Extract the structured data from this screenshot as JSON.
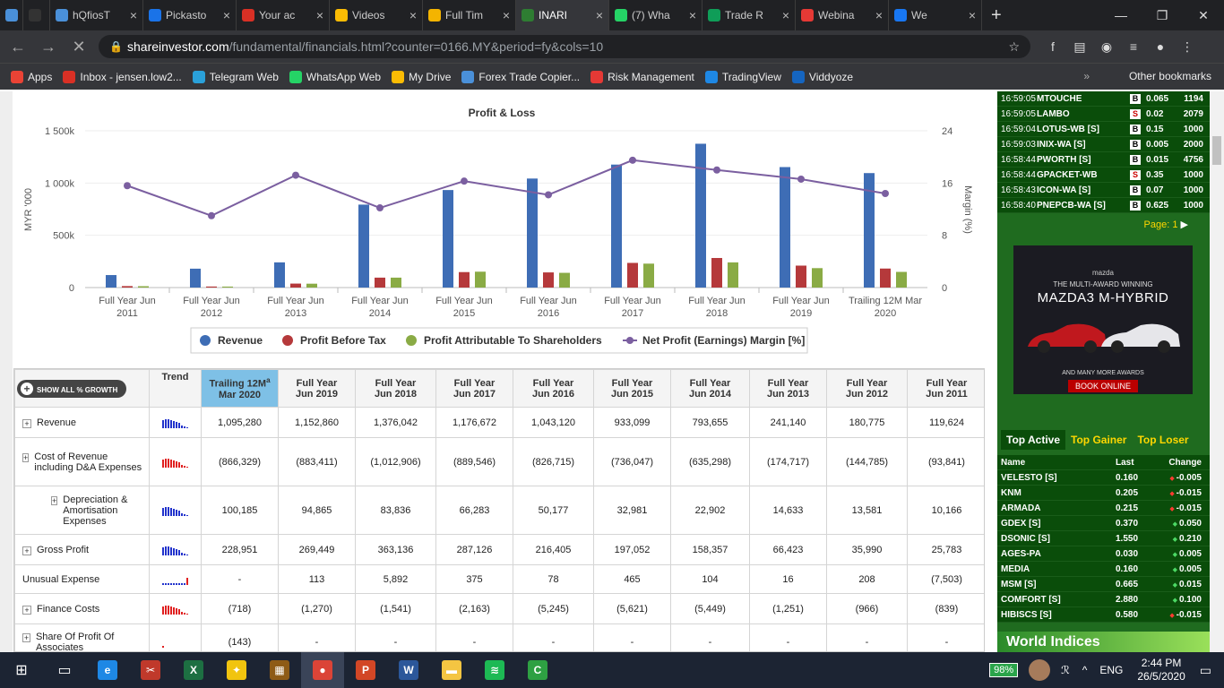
{
  "browser": {
    "tabs": [
      {
        "label": "",
        "icon": "blue-cloud-icon",
        "color": "#4a90d9"
      },
      {
        "label": "",
        "icon": "inv-icon",
        "color": "#333333"
      },
      {
        "label": "hQfiosT",
        "icon": "cloud-icon",
        "color": "#4a90d9"
      },
      {
        "label": "Pickasto",
        "icon": "at-icon",
        "color": "#1a73e8"
      },
      {
        "label": "Your ac",
        "icon": "gmail-icon",
        "color": "#d93025"
      },
      {
        "label": "Videos",
        "icon": "drive-icon",
        "color": "#fbbc04"
      },
      {
        "label": "Full Tim",
        "icon": "doc-icon",
        "color": "#f4b400"
      },
      {
        "label": "INARI",
        "icon": "chart-icon",
        "color": "#2e7d32"
      },
      {
        "label": "(7) Wha",
        "icon": "whatsapp-icon",
        "color": "#25d366"
      },
      {
        "label": "Trade R",
        "icon": "sheets-icon",
        "color": "#0f9d58"
      },
      {
        "label": "Webina",
        "icon": "webinar-icon",
        "color": "#e53935"
      },
      {
        "label": "We",
        "icon": "facebook-icon",
        "color": "#1877f2"
      }
    ],
    "active_tab": 7,
    "url_domain": "shareinvestor.com",
    "url_rest": "/fundamental/financials.html?counter=0166.MY&period=fy&cols=10",
    "bookmarks": [
      "Apps",
      "Inbox - jensen.low2...",
      "Telegram Web",
      "WhatsApp Web",
      "My Drive",
      "Forex Trade Copier...",
      "Risk Management",
      "TradingView",
      "Viddyoze"
    ],
    "bookmark_colors": [
      "#ea4335",
      "#d93025",
      "#2aa1da",
      "#25d366",
      "#fbbc04",
      "#4a90d9",
      "#e53935",
      "#1e88e5",
      "#1565c0"
    ],
    "other_bookmarks": "Other bookmarks",
    "overflow": "»"
  },
  "chart_data": {
    "type": "bar",
    "title": "Profit & Loss",
    "ylabel": "MYR '000",
    "y2label": "Margin (%)",
    "ylim": [
      0,
      1500000
    ],
    "y2lim": [
      0,
      24
    ],
    "yticks": [
      "1 500k",
      "1 000k",
      "500k",
      "0"
    ],
    "y2ticks": [
      "24",
      "16",
      "8",
      "0"
    ],
    "categories": [
      [
        "Full Year Jun",
        "2011"
      ],
      [
        "Full Year Jun",
        "2012"
      ],
      [
        "Full Year Jun",
        "2013"
      ],
      [
        "Full Year Jun",
        "2014"
      ],
      [
        "Full Year Jun",
        "2015"
      ],
      [
        "Full Year Jun",
        "2016"
      ],
      [
        "Full Year Jun",
        "2017"
      ],
      [
        "Full Year Jun",
        "2018"
      ],
      [
        "Full Year Jun",
        "2019"
      ],
      [
        "Trailing 12M Mar",
        "2020"
      ]
    ],
    "series": [
      {
        "name": "Revenue",
        "color": "#3e6db5",
        "values": [
          119624,
          180775,
          241140,
          793655,
          933099,
          1043120,
          1176672,
          1376042,
          1152860,
          1095280
        ]
      },
      {
        "name": "Profit Before Tax",
        "color": "#b5393b",
        "values": [
          14000,
          10000,
          38000,
          95000,
          148000,
          145000,
          236000,
          283000,
          210000,
          182000
        ]
      },
      {
        "name": "Profit Attributable To Shareholders",
        "color": "#8aab45",
        "values": [
          13000,
          9500,
          37000,
          95000,
          152000,
          141000,
          229000,
          241000,
          186000,
          150000
        ]
      }
    ],
    "line": {
      "name": "Net Profit (Earnings) Margin [%]",
      "color": "#7b5fa0",
      "values": [
        15.6,
        11.0,
        17.2,
        12.2,
        16.3,
        14.2,
        19.5,
        18.0,
        16.6,
        14.4
      ]
    }
  },
  "table": {
    "show_all": "SHOW ALL % GROWTH",
    "trend_header": "Trend",
    "columns": [
      [
        "Trailing 12M",
        "Mar 2020"
      ],
      [
        "Full Year",
        "Jun 2019"
      ],
      [
        "Full Year",
        "Jun 2018"
      ],
      [
        "Full Year",
        "Jun 2017"
      ],
      [
        "Full Year",
        "Jun 2016"
      ],
      [
        "Full Year",
        "Jun 2015"
      ],
      [
        "Full Year",
        "Jun 2014"
      ],
      [
        "Full Year",
        "Jun 2013"
      ],
      [
        "Full Year",
        "Jun 2012"
      ],
      [
        "Full Year",
        "Jun 2011"
      ]
    ],
    "superscript": "a",
    "rows": [
      {
        "label": "Revenue",
        "plus": true,
        "indent": 0,
        "h": 34,
        "trend": "blue",
        "values": [
          "1,095,280",
          "1,152,860",
          "1,376,042",
          "1,176,672",
          "1,043,120",
          "933,099",
          "793,655",
          "241,140",
          "180,775",
          "119,624"
        ]
      },
      {
        "label": "Cost of Revenue including D&A Expenses",
        "plus": true,
        "indent": 0,
        "h": 54,
        "trend": "red",
        "values": [
          "(866,329)",
          "(883,411)",
          "(1,012,906)",
          "(889,546)",
          "(826,715)",
          "(736,047)",
          "(635,298)",
          "(174,717)",
          "(144,785)",
          "(93,841)"
        ]
      },
      {
        "label": "Depreciation & Amortisation Expenses",
        "plus": true,
        "indent": 1,
        "h": 54,
        "trend": "blue",
        "values": [
          "100,185",
          "94,865",
          "83,836",
          "66,283",
          "50,177",
          "32,981",
          "22,902",
          "14,633",
          "13,581",
          "10,166"
        ]
      },
      {
        "label": "Gross Profit",
        "plus": true,
        "indent": 0,
        "h": 34,
        "trend": "blue",
        "values": [
          "228,951",
          "269,449",
          "363,136",
          "287,126",
          "216,405",
          "197,052",
          "158,357",
          "66,423",
          "35,990",
          "25,783"
        ]
      },
      {
        "label": "Unusual Expense",
        "plus": false,
        "indent": 0,
        "h": 32,
        "trend": "mixed",
        "values": [
          "-",
          "113",
          "5,892",
          "375",
          "78",
          "465",
          "104",
          "16",
          "208",
          "(7,503)"
        ]
      },
      {
        "label": "Finance Costs",
        "plus": true,
        "indent": 0,
        "h": 34,
        "trend": "red",
        "values": [
          "(718)",
          "(1,270)",
          "(1,541)",
          "(2,163)",
          "(5,245)",
          "(5,621)",
          "(5,449)",
          "(1,251)",
          "(966)",
          "(839)"
        ]
      },
      {
        "label": "Share Of Profit Of Associates",
        "plus": true,
        "indent": 0,
        "h": 40,
        "trend": "red-dot",
        "values": [
          "(143)",
          "-",
          "-",
          "-",
          "-",
          "-",
          "-",
          "-",
          "-",
          "-"
        ]
      }
    ]
  },
  "sidebar": {
    "trades": [
      {
        "time": "16:59:05",
        "name": "MTOUCHE",
        "side": "B",
        "price": "0.065",
        "vol": "1194"
      },
      {
        "time": "16:59:05",
        "name": "LAMBO",
        "side": "S",
        "price": "0.02",
        "vol": "2079"
      },
      {
        "time": "16:59:04",
        "name": "LOTUS-WB [S]",
        "side": "B",
        "price": "0.15",
        "vol": "1000"
      },
      {
        "time": "16:59:03",
        "name": "INIX-WA [S]",
        "side": "B",
        "price": "0.005",
        "vol": "2000"
      },
      {
        "time": "16:58:44",
        "name": "PWORTH [S]",
        "side": "B",
        "price": "0.015",
        "vol": "4756"
      },
      {
        "time": "16:58:44",
        "name": "GPACKET-WB",
        "side": "S",
        "price": "0.35",
        "vol": "1000"
      },
      {
        "time": "16:58:43",
        "name": "ICON-WA [S]",
        "side": "B",
        "price": "0.07",
        "vol": "1000"
      },
      {
        "time": "16:58:40",
        "name": "PNEPCB-WA [S]",
        "side": "B",
        "price": "0.625",
        "vol": "1000"
      }
    ],
    "page_label": "Page:",
    "page_num": "1",
    "ad": {
      "brand": "mazda",
      "line1": "THE MULTI-AWARD WINNING",
      "line2": "MAZDA3 M-HYBRID",
      "more": "AND MANY MORE AWARDS",
      "cta": "BOOK ONLINE"
    },
    "tabs": [
      "Top Active",
      "Top Gainer",
      "Top Loser"
    ],
    "mover_headers": [
      "Name",
      "Last",
      "Change"
    ],
    "movers": [
      {
        "name": "VELESTO [S]",
        "last": "0.160",
        "chg": "-0.005",
        "dir": "down"
      },
      {
        "name": "KNM",
        "last": "0.205",
        "chg": "-0.015",
        "dir": "down"
      },
      {
        "name": "ARMADA",
        "last": "0.215",
        "chg": "-0.015",
        "dir": "down"
      },
      {
        "name": "GDEX [S]",
        "last": "0.370",
        "chg": "0.050",
        "dir": "up"
      },
      {
        "name": "DSONIC [S]",
        "last": "1.550",
        "chg": "0.210",
        "dir": "up"
      },
      {
        "name": "AGES-PA",
        "last": "0.030",
        "chg": "0.005",
        "dir": "up"
      },
      {
        "name": "MEDIA",
        "last": "0.160",
        "chg": "0.005",
        "dir": "up"
      },
      {
        "name": "MSM [S]",
        "last": "0.665",
        "chg": "0.015",
        "dir": "up"
      },
      {
        "name": "COMFORT [S]",
        "last": "2.880",
        "chg": "0.100",
        "dir": "up"
      },
      {
        "name": "HIBISCS [S]",
        "last": "0.580",
        "chg": "-0.015",
        "dir": "down"
      }
    ],
    "world": "World Indices"
  },
  "taskbar": {
    "apps": [
      {
        "name": "ie-icon",
        "color": "#1e88e5",
        "glyph": "e"
      },
      {
        "name": "snipping-icon",
        "color": "#c0392b",
        "glyph": "✂"
      },
      {
        "name": "excel-icon",
        "color": "#1d6f42",
        "glyph": "X"
      },
      {
        "name": "bulb-icon",
        "color": "#f1c40f",
        "glyph": "✦"
      },
      {
        "name": "grid-app-icon",
        "color": "#8e5b16",
        "glyph": "▦"
      },
      {
        "name": "chrome-icon",
        "color": "#db4437",
        "glyph": "●"
      },
      {
        "name": "powerpoint-icon",
        "color": "#d24726",
        "glyph": "P"
      },
      {
        "name": "word-icon",
        "color": "#2b579a",
        "glyph": "W"
      },
      {
        "name": "explorer-icon",
        "color": "#f4c542",
        "glyph": "▬"
      },
      {
        "name": "spotify-icon",
        "color": "#1db954",
        "glyph": "≋"
      },
      {
        "name": "camtasia-icon",
        "color": "#2ea043",
        "glyph": "C"
      }
    ],
    "battery": "98%",
    "lang": "ENG",
    "time": "2:44 PM",
    "date": "26/5/2020"
  }
}
